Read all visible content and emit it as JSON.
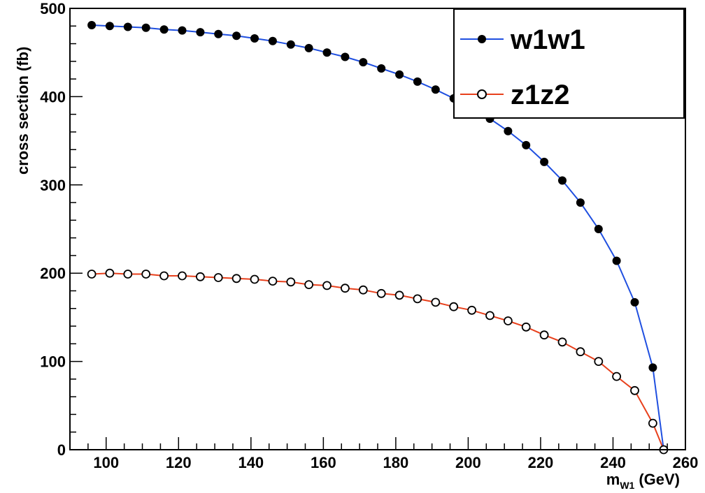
{
  "chart_data": {
    "type": "line",
    "xlabel_main": "m",
    "xlabel_sub": "W1",
    "xlabel_unit": "(GeV)",
    "ylabel": "cross section (fb)",
    "xlim": [
      90,
      260
    ],
    "ylim": [
      0,
      500
    ],
    "xticks": [
      100,
      120,
      140,
      160,
      180,
      200,
      220,
      240,
      260
    ],
    "yticks": [
      0,
      100,
      200,
      300,
      400,
      500
    ],
    "grid": false,
    "legend_position": "top-right",
    "series": [
      {
        "name": "w1w1",
        "color": "#1f4fe0",
        "marker": "filled-circle",
        "x": [
          96,
          101,
          106,
          111,
          116,
          121,
          126,
          131,
          136,
          141,
          146,
          151,
          156,
          161,
          166,
          171,
          176,
          181,
          186,
          191,
          196,
          201,
          206,
          211,
          216,
          221,
          226,
          231,
          236,
          241,
          246,
          251,
          254
        ],
        "y": [
          481,
          480,
          479,
          478,
          476,
          475,
          473,
          471,
          469,
          466,
          463,
          459,
          455,
          450,
          445,
          439,
          432,
          425,
          417,
          408,
          398,
          387,
          375,
          361,
          345,
          326,
          305,
          280,
          250,
          214,
          167,
          93,
          0
        ]
      },
      {
        "name": "z1z2",
        "color": "#e8401c",
        "marker": "open-circle",
        "x": [
          96,
          101,
          106,
          111,
          116,
          121,
          126,
          131,
          136,
          141,
          146,
          151,
          156,
          161,
          166,
          171,
          176,
          181,
          186,
          191,
          196,
          201,
          206,
          211,
          216,
          221,
          226,
          231,
          236,
          241,
          246,
          251,
          254
        ],
        "y": [
          199,
          200,
          199,
          199,
          197,
          197,
          196,
          195,
          194,
          193,
          191,
          190,
          187,
          186,
          183,
          181,
          177,
          175,
          171,
          167,
          162,
          158,
          152,
          146,
          139,
          130,
          122,
          111,
          100,
          83,
          67,
          30,
          0
        ]
      }
    ]
  }
}
